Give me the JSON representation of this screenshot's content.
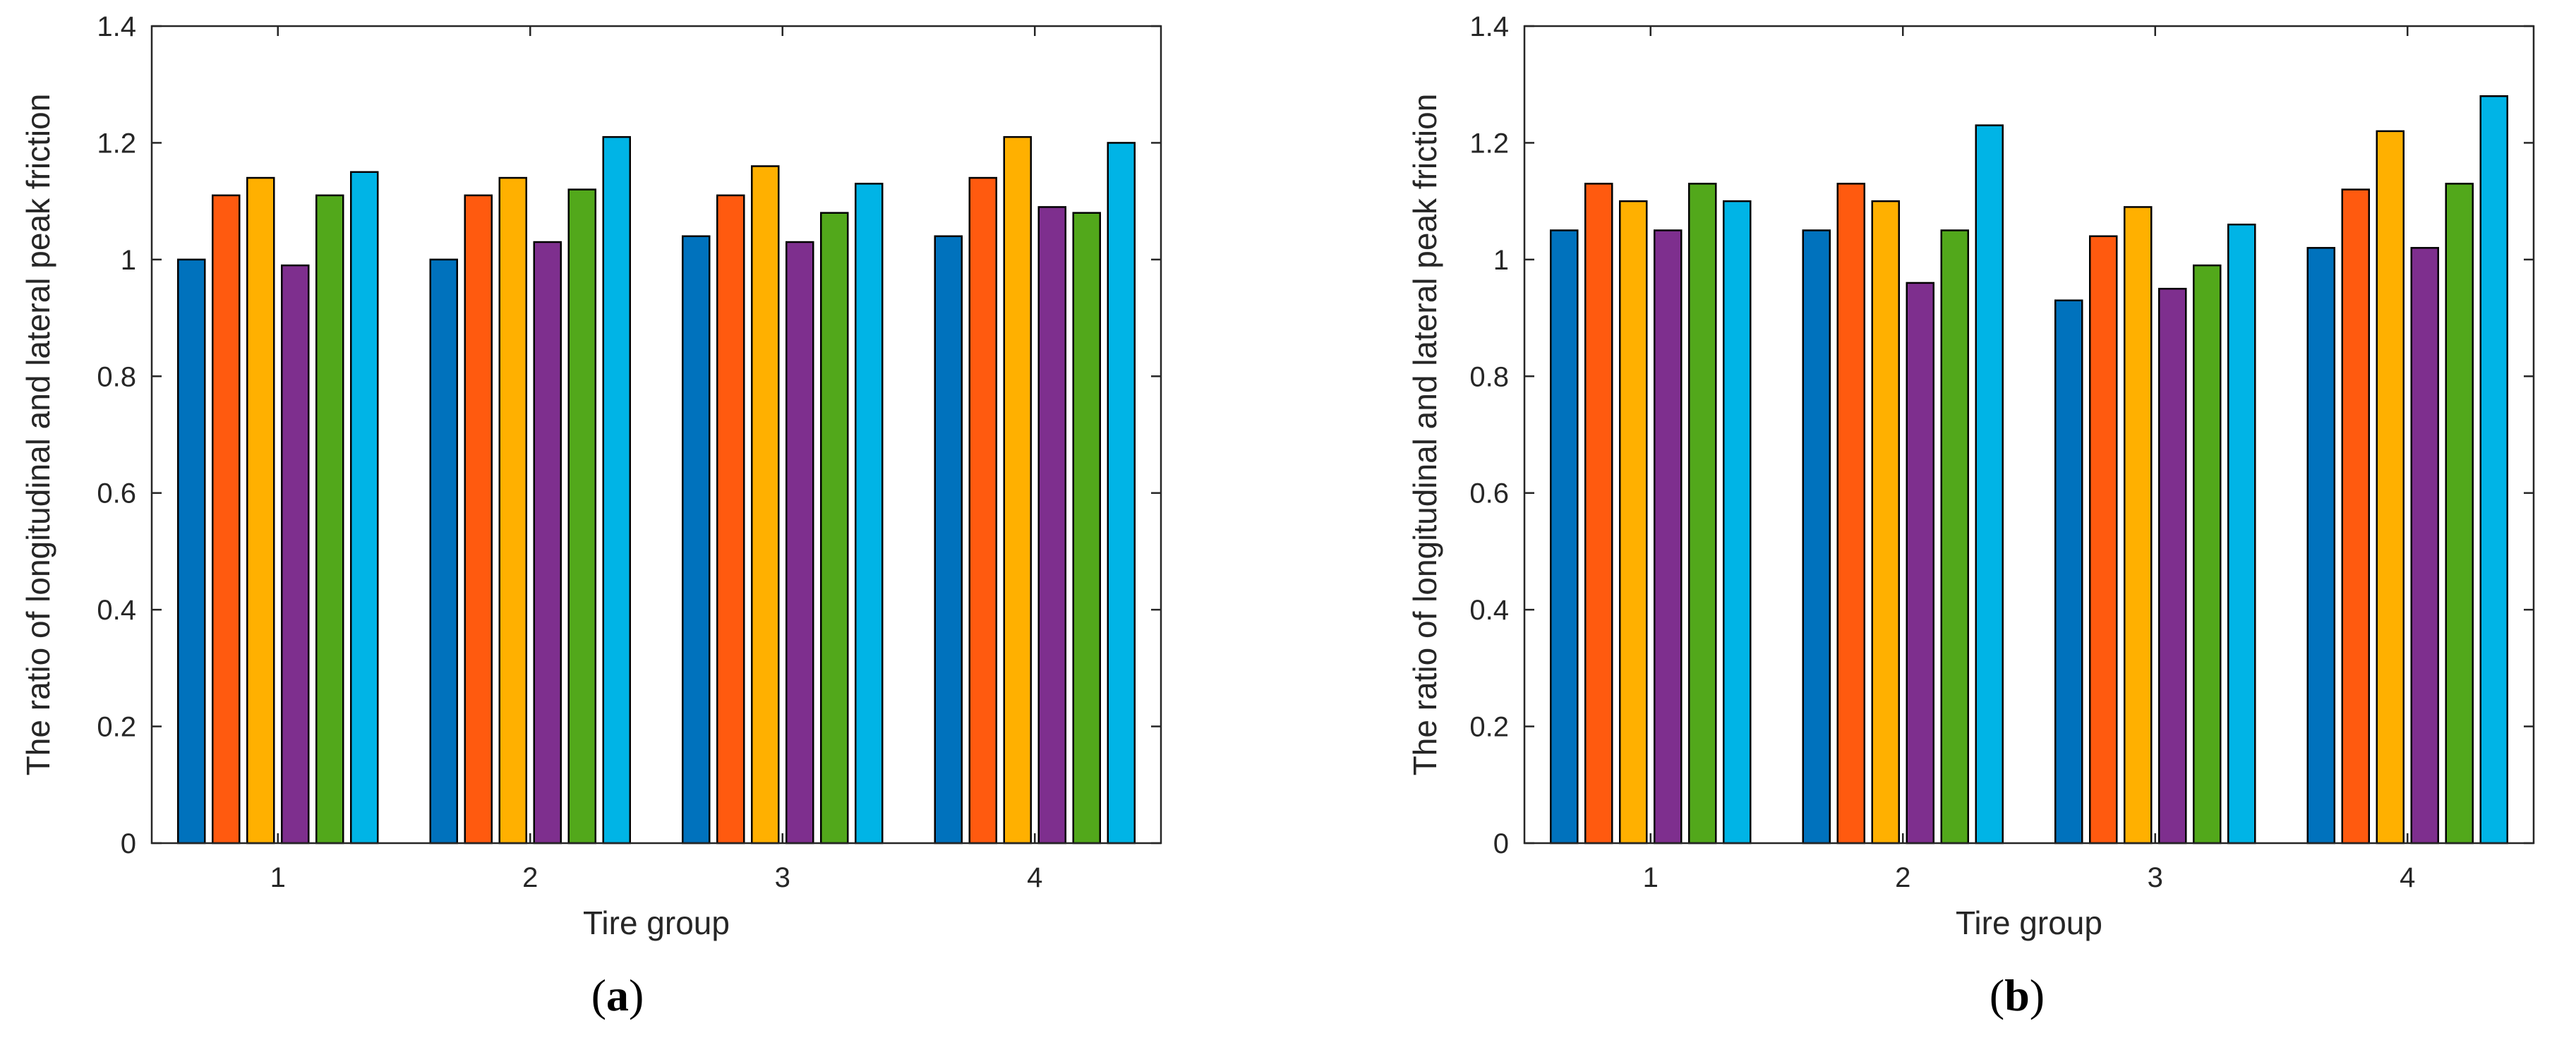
{
  "chart_data": [
    {
      "type": "bar",
      "panel_label": "a",
      "xlabel": "Tire group",
      "ylabel": "The ratio of longitudinal and lateral peak friction",
      "categories": [
        "1",
        "2",
        "3",
        "4"
      ],
      "ylim": [
        0,
        1.4
      ],
      "yticks": [
        "0",
        "0.2",
        "0.4",
        "0.6",
        "0.8",
        "1",
        "1.2",
        "1.4"
      ],
      "colors": [
        "#0072BD",
        "#FF5A0F",
        "#FFB000",
        "#7E2F8E",
        "#52A81B",
        "#00B4E6"
      ],
      "series_by_group": [
        [
          1.0,
          1.11,
          1.14,
          0.99,
          1.11,
          1.15
        ],
        [
          1.0,
          1.11,
          1.14,
          1.03,
          1.12,
          1.21
        ],
        [
          1.04,
          1.11,
          1.16,
          1.03,
          1.08,
          1.13
        ],
        [
          1.04,
          1.14,
          1.21,
          1.09,
          1.08,
          1.2
        ]
      ]
    },
    {
      "type": "bar",
      "panel_label": "b",
      "xlabel": "Tire group",
      "ylabel": "The ratio of longitudinal and lateral peak friction",
      "categories": [
        "1",
        "2",
        "3",
        "4"
      ],
      "ylim": [
        0,
        1.4
      ],
      "yticks": [
        "0",
        "0.2",
        "0.4",
        "0.6",
        "0.8",
        "1",
        "1.2",
        "1.4"
      ],
      "colors": [
        "#0072BD",
        "#FF5A0F",
        "#FFB000",
        "#7E2F8E",
        "#52A81B",
        "#00B4E6"
      ],
      "series_by_group": [
        [
          1.05,
          1.13,
          1.1,
          1.05,
          1.13,
          1.1
        ],
        [
          1.05,
          1.13,
          1.1,
          0.96,
          1.05,
          1.23
        ],
        [
          0.93,
          1.04,
          1.09,
          0.95,
          0.99,
          1.06
        ],
        [
          1.02,
          1.12,
          1.22,
          1.02,
          1.13,
          1.28
        ]
      ]
    }
  ]
}
